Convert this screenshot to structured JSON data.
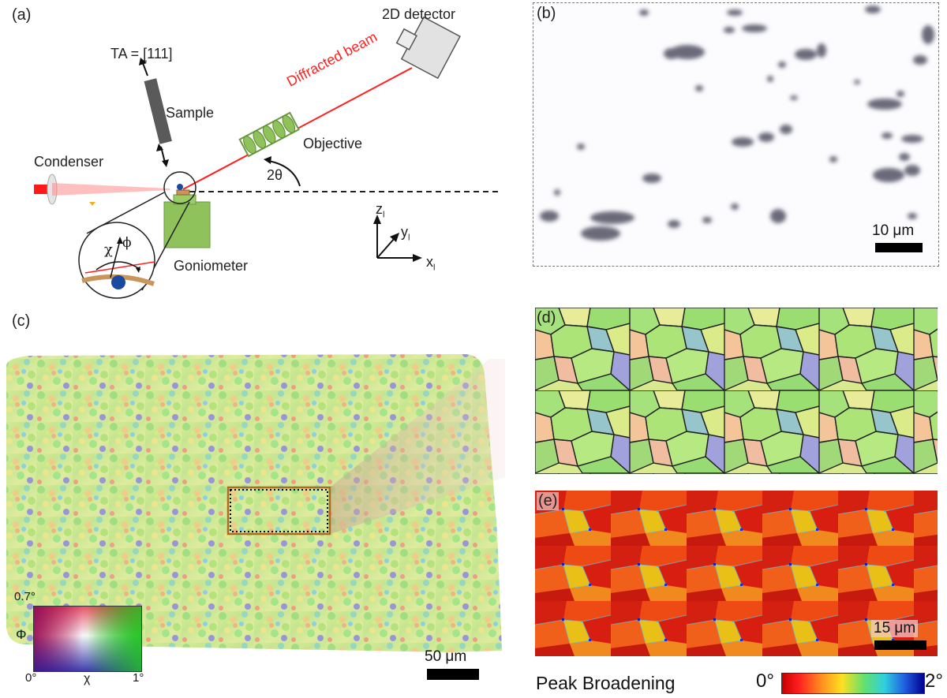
{
  "panels": {
    "a": {
      "letter": "(a)",
      "labels": {
        "detector": "2D detector",
        "ta": "TA = [111]",
        "sample": "Sample",
        "diffracted_beam": "Diffracted beam",
        "objective": "Objective",
        "condenser": "Condenser",
        "two_theta": "2θ",
        "goniometer": "Goniometer",
        "chi": "χ",
        "phi": "ϕ",
        "axis_z": "z",
        "axis_y": "y",
        "axis_x": "x",
        "axis_sub": "l"
      },
      "colors": {
        "beam": "#ff2020",
        "objective": "#7cc04a",
        "goniometer": "#8fc25a",
        "sample": "#555555"
      }
    },
    "b": {
      "letter": "(b)",
      "scale_bar": "10 μm"
    },
    "c": {
      "letter": "(c)",
      "scale_bar": "50 μm",
      "legend": {
        "phi_max": "0.7°",
        "phi_label": "Φ",
        "chi_min": "0°",
        "chi_label": "χ",
        "chi_max": "1°"
      }
    },
    "d": {
      "letter": "(d)"
    },
    "e": {
      "letter": "(e)",
      "scale_bar": "15 μm"
    },
    "colorbar": {
      "title": "Peak Broadening",
      "min": "0°",
      "max": "2°"
    }
  }
}
